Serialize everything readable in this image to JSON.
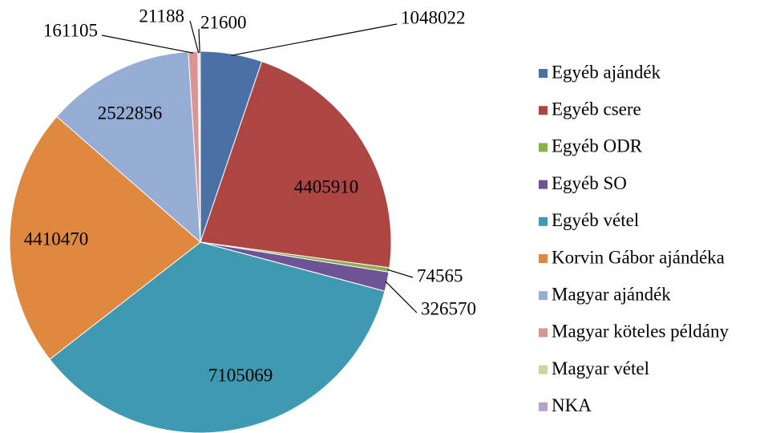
{
  "chart_data": {
    "type": "pie",
    "categories": [
      "Egyéb ajándék",
      "Egyéb csere",
      "Egyéb ODR",
      "Egyéb SO",
      "Egyéb vétel",
      "Korvin Gábor ajándéka",
      "Magyar ajándék",
      "Magyar köteles példány",
      "Magyar vétel",
      "NKA"
    ],
    "values": [
      1048022,
      4405910,
      74565,
      326570,
      7105069,
      4410470,
      2522856,
      161105,
      21188,
      21600
    ],
    "colors": [
      "#4a70a6",
      "#ad4643",
      "#8bae4f",
      "#6e5496",
      "#3f9ab1",
      "#df883f",
      "#95acd5",
      "#d99593",
      "#c3d9a1",
      "#b3a3c8"
    ],
    "legend": "right"
  }
}
